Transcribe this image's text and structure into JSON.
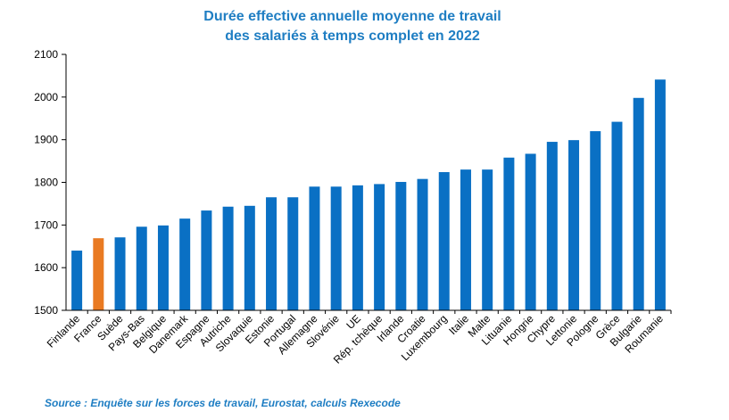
{
  "chart_data": {
    "type": "bar",
    "title_line1": "Durée effective annuelle moyenne de travail",
    "title_line2": "des salariés à temps complet en 2022",
    "xlabel": "",
    "ylabel": "",
    "ylim": [
      1500,
      2100
    ],
    "yticks": [
      1500,
      1600,
      1700,
      1800,
      1900,
      2000,
      2100
    ],
    "categories": [
      "Finlande",
      "France",
      "Suède",
      "Pays-Bas",
      "Belgique",
      "Danemark",
      "Espagne",
      "Autriche",
      "Slovaquie",
      "Estonie",
      "Portugal",
      "Allemagne",
      "Slovénie",
      "UE",
      "Rép. tchèque",
      "Irlande",
      "Croatie",
      "Luxembourg",
      "Italie",
      "Malte",
      "Lituanie",
      "Hongrie",
      "Chypre",
      "Lettonie",
      "Pologne",
      "Grèce",
      "Bulgarie",
      "Roumanie"
    ],
    "values": [
      1640,
      1669,
      1671,
      1696,
      1699,
      1715,
      1734,
      1743,
      1745,
      1765,
      1765,
      1790,
      1790,
      1793,
      1796,
      1801,
      1808,
      1824,
      1830,
      1830,
      1858,
      1867,
      1895,
      1899,
      1920,
      1942,
      1998,
      2041
    ],
    "bar_color": "#0a70c4",
    "highlight_color": "#e97a22",
    "highlight_category": "France",
    "grid": false,
    "legend": "none"
  },
  "source": "Source  : Enquête sur les forces  de travail, Eurostat, calculs  Rexecode"
}
